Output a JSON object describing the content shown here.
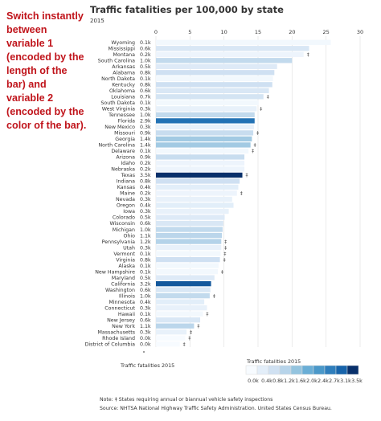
{
  "side_note": "Switch instantly between variable 1 (encoded by the length of the bar) and variable 2 (encoded by the color of the bar).",
  "chart_data": {
    "type": "bar",
    "orientation": "horizontal",
    "title": "Traffic fatalities per 100,000 by state",
    "subtitle": "2015",
    "xlabel": "Traffic fatalities 2015",
    "xlim": [
      0,
      30
    ],
    "x_ticks": [
      "0",
      "5",
      "10",
      "15",
      "20",
      "25",
      "30"
    ],
    "categories": [
      "Wyoming",
      "Mississippi",
      "Montana",
      "South Carolina",
      "Arkansas",
      "Alabama",
      "North Dakota",
      "Kentucky",
      "Oklahoma",
      "Louisiana",
      "South Dakota",
      "West Virginia",
      "Tennessee",
      "Florida",
      "New Mexico",
      "Missouri",
      "Georgia",
      "North Carolina",
      "Delaware",
      "Arizona",
      "Idaho",
      "Nebraska",
      "Texas",
      "Indiana",
      "Kansas",
      "Maine",
      "Nevada",
      "Oregon",
      "Iowa",
      "Colorado",
      "Wisconsin",
      "Michigan",
      "Ohio",
      "Pennsylvania",
      "Utah",
      "Vermont",
      "Virginia",
      "Alaska",
      "New Hampshire",
      "Maryland",
      "California",
      "Washington",
      "Illinois",
      "Minnesota",
      "Connecticut",
      "Hawaii",
      "New Jersey",
      "New York",
      "Massachusetts",
      "Rhode Island",
      "District of Columbia"
    ],
    "value_labels": [
      "0.1k",
      "0.6k",
      "0.2k",
      "1.0k",
      "0.5k",
      "0.8k",
      "0.1k",
      "0.8k",
      "0.6k",
      "0.7k",
      "0.1k",
      "0.3k",
      "1.0k",
      "2.9k",
      "0.3k",
      "0.9k",
      "1.4k",
      "1.4k",
      "0.1k",
      "0.9k",
      "0.2k",
      "0.2k",
      "3.5k",
      "0.8k",
      "0.4k",
      "0.2k",
      "0.3k",
      "0.4k",
      "0.3k",
      "0.5k",
      "0.6k",
      "1.0k",
      "1.1k",
      "1.2k",
      "0.3k",
      "0.1k",
      "0.8k",
      "0.1k",
      "0.1k",
      "0.5k",
      "3.2k",
      "0.6k",
      "1.0k",
      "0.4k",
      "0.3k",
      "0.1k",
      "0.6k",
      "1.1k",
      "0.3k",
      "0.0k",
      "0.0k"
    ],
    "color_values": [
      0.1,
      0.6,
      0.2,
      1.0,
      0.5,
      0.8,
      0.1,
      0.8,
      0.6,
      0.7,
      0.1,
      0.3,
      1.0,
      2.9,
      0.3,
      0.9,
      1.4,
      1.4,
      0.1,
      0.9,
      0.2,
      0.2,
      3.5,
      0.8,
      0.4,
      0.2,
      0.3,
      0.4,
      0.3,
      0.5,
      0.6,
      1.0,
      1.1,
      1.2,
      0.3,
      0.1,
      0.8,
      0.1,
      0.1,
      0.5,
      3.2,
      0.6,
      1.0,
      0.4,
      0.3,
      0.1,
      0.6,
      1.1,
      0.3,
      0.0,
      0.0
    ],
    "values": [
      25.7,
      22.5,
      21.7,
      20.0,
      17.8,
      17.4,
      17.2,
      17.1,
      16.6,
      15.8,
      15.1,
      14.8,
      14.5,
      14.5,
      14.4,
      14.3,
      14.1,
      13.9,
      13.6,
      13.0,
      13.0,
      13.0,
      12.7,
      12.3,
      12.1,
      11.9,
      11.2,
      11.4,
      10.7,
      10.1,
      9.9,
      9.8,
      9.7,
      9.6,
      9.6,
      9.5,
      9.4,
      9.2,
      9.1,
      8.6,
      8.1,
      8.0,
      7.9,
      7.1,
      7.5,
      6.9,
      6.5,
      5.6,
      4.5,
      4.3,
      3.5
    ],
    "marked": [
      false,
      false,
      true,
      false,
      false,
      false,
      false,
      false,
      false,
      true,
      false,
      true,
      false,
      false,
      false,
      true,
      false,
      true,
      true,
      false,
      false,
      false,
      true,
      false,
      false,
      true,
      false,
      false,
      false,
      false,
      false,
      false,
      false,
      true,
      true,
      true,
      true,
      false,
      true,
      false,
      false,
      false,
      true,
      false,
      false,
      true,
      false,
      true,
      true,
      true,
      true
    ],
    "marker_symbol": "‡",
    "legend": {
      "title": "Traffic fatalities 2015",
      "labels": [
        "0.0k",
        "0.4k",
        "0.8k",
        "1.2k",
        "1.6k",
        "2.0k",
        "2.4k",
        "2.7k",
        "3.1k",
        "3.5k"
      ],
      "colors": [
        "#f7fbff",
        "#e3eef9",
        "#d0e1f2",
        "#b7d4ea",
        "#94c4df",
        "#6aaed6",
        "#4a98c9",
        "#2e7ebc",
        "#1764ab",
        "#08306b"
      ]
    },
    "grid": true
  },
  "notes": [
    "Note: ‡ States requiring annual or biannual vehicle safety inspections",
    "Source: NHTSA National Highway Traffic Safety Administration. United States Census Bureau."
  ]
}
